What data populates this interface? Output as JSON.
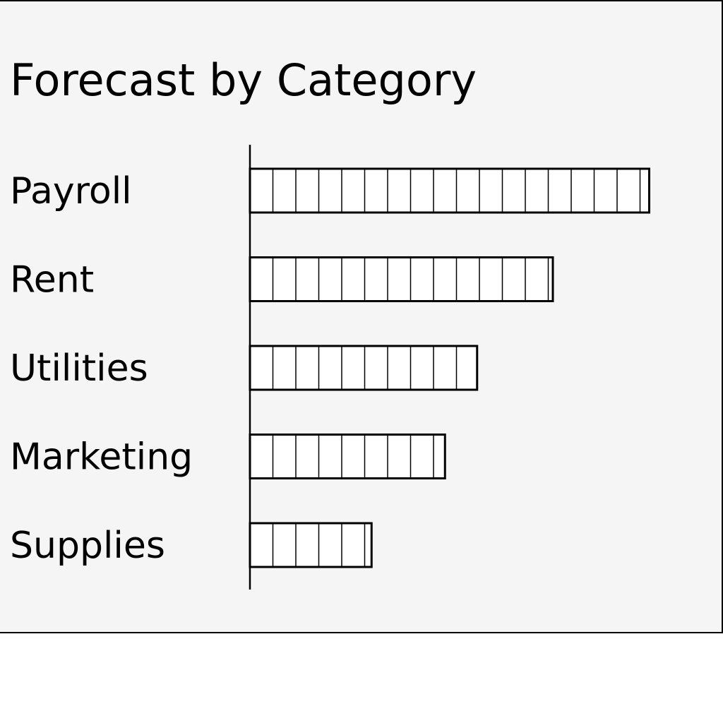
{
  "chart_data": {
    "type": "bar",
    "orientation": "horizontal",
    "title": "Forecast by Category",
    "categories": [
      "Payroll",
      "Rent",
      "Utilities",
      "Marketing",
      "Supplies"
    ],
    "values": [
      17.4,
      13.2,
      9.9,
      8.5,
      5.3
    ],
    "xlabel": "",
    "ylabel": "",
    "grid": false,
    "legend": "none",
    "colors": {
      "bar_fill": "#ffffff",
      "bar_stroke": "#000000",
      "segment_stroke": "#000000",
      "axis": "#000000",
      "background": "#f5f5f5"
    }
  }
}
